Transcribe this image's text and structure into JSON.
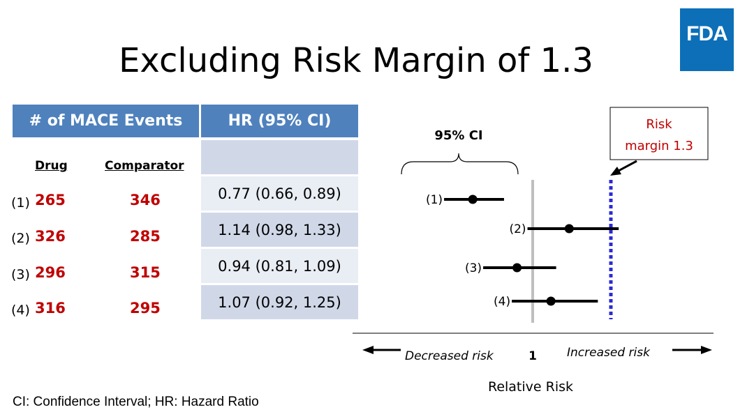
{
  "slide": {
    "title": "Excluding Risk Margin of 1.3",
    "logo_text": "FDA",
    "footnote": "CI: Confidence Interval; HR: Hazard Ratio"
  },
  "table": {
    "header_events": "# of MACE Events",
    "header_hr": "HR (95% CI)",
    "col_drug": "Drug",
    "col_comparator": "Comparator",
    "rows": [
      {
        "label": "(1)",
        "drug": "265",
        "comparator": "346",
        "hr": "0.77 (0.66, 0.89)"
      },
      {
        "label": "(2)",
        "drug": "326",
        "comparator": "285",
        "hr": "1.14 (0.98, 1.33)"
      },
      {
        "label": "(3)",
        "drug": "296",
        "comparator": "315",
        "hr": "0.94 (0.81, 1.09)"
      },
      {
        "label": "(4)",
        "drug": "316",
        "comparator": "295",
        "hr": "1.07 (0.92, 1.25)"
      }
    ]
  },
  "chart_data": {
    "type": "forest",
    "xlabel": "Relative Risk",
    "reference_label": "1",
    "reference_value": 1,
    "margin_value": 1.3,
    "margin_label_line1": "Risk",
    "margin_label_line2": "margin 1.3",
    "ci_label": "95% CI",
    "left_arrow_label": "Decreased risk",
    "right_arrow_label": "Increased risk",
    "series": [
      {
        "label": "(1)",
        "estimate": 0.77,
        "lower": 0.66,
        "upper": 0.89
      },
      {
        "label": "(2)",
        "estimate": 1.14,
        "lower": 0.98,
        "upper": 1.33
      },
      {
        "label": "(3)",
        "estimate": 0.94,
        "lower": 0.81,
        "upper": 1.09
      },
      {
        "label": "(4)",
        "estimate": 1.07,
        "lower": 0.92,
        "upper": 1.25
      }
    ],
    "colors": {
      "reference": "#bfbfbf",
      "margin": "#2b2bd6",
      "header": "#4f81bd",
      "values": "#c00000"
    }
  }
}
